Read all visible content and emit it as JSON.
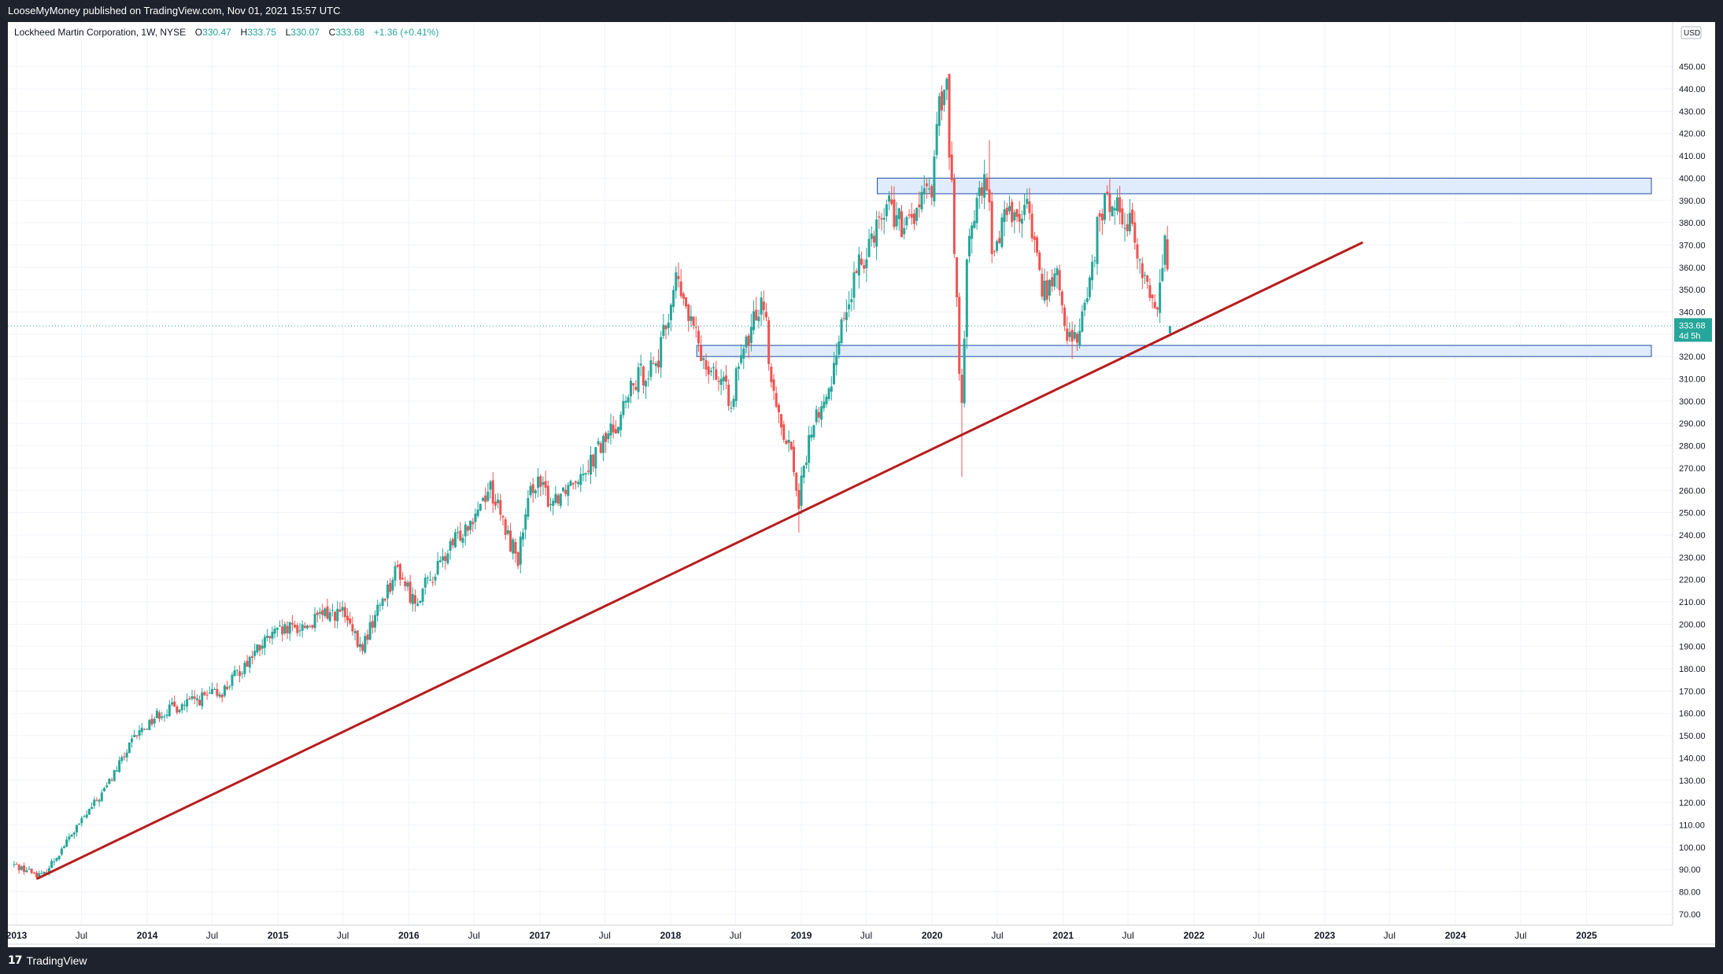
{
  "header": {
    "published_text": "LooseMyMoney published on TradingView.com, Nov 01, 2021 15:57 UTC"
  },
  "legend": {
    "symbol_text": "Lockheed Martin Corporation, 1W, NYSE",
    "open_label": "O",
    "open_value": "330.47",
    "high_label": "H",
    "high_value": "333.75",
    "low_label": "L",
    "low_value": "330.07",
    "close_label": "C",
    "close_value": "333.68",
    "change_value": "+1.36 (+0.41%)"
  },
  "footer": {
    "brand": "TradingView",
    "logo_icon": "tradingview-logo-icon"
  },
  "colors": {
    "up": "#26a69a",
    "down": "#ef5350",
    "trendline": "#b71c1c",
    "zone_fill": "#dbe9fb",
    "zone_border": "#1e4fa0",
    "grid": "#f0f3fa",
    "price_badge": "#26a69a"
  },
  "chart_data": {
    "type": "candlestick",
    "title": "Lockheed Martin Corporation, 1W, NYSE",
    "currency": "USD",
    "y_axis": {
      "scale": "linear",
      "range": [
        65,
        470
      ],
      "tick_labels": [
        "70.00",
        "80.00",
        "90.00",
        "100.00",
        "110.00",
        "120.00",
        "130.00",
        "140.00",
        "150.00",
        "160.00",
        "170.00",
        "180.00",
        "190.00",
        "200.00",
        "210.00",
        "220.00",
        "230.00",
        "240.00",
        "250.00",
        "260.00",
        "270.00",
        "280.00",
        "290.00",
        "300.00",
        "310.00",
        "320.00",
        "330.00",
        "340.00",
        "350.00",
        "360.00",
        "370.00",
        "380.00",
        "390.00",
        "400.00",
        "410.00",
        "420.00",
        "430.00",
        "440.00",
        "450.00"
      ],
      "tick_values": [
        70,
        80,
        90,
        100,
        110,
        120,
        130,
        140,
        150,
        160,
        170,
        180,
        190,
        200,
        210,
        220,
        230,
        240,
        250,
        260,
        270,
        280,
        290,
        300,
        310,
        320,
        330,
        340,
        350,
        360,
        370,
        380,
        390,
        400,
        410,
        420,
        430,
        440,
        450
      ]
    },
    "x_axis": {
      "range": [
        "2013-01-01",
        "2025-07-01"
      ],
      "tick_labels": [
        "2013",
        "Jul",
        "2014",
        "Jul",
        "2015",
        "Jul",
        "2016",
        "Jul",
        "2017",
        "Jul",
        "2018",
        "Jul",
        "2019",
        "Jul",
        "2020",
        "Jul",
        "2021",
        "Jul",
        "2022",
        "Jul",
        "2023",
        "Jul",
        "2024",
        "Jul",
        "2025"
      ],
      "tick_dates": [
        "2013-01-01",
        "2013-07-01",
        "2014-01-01",
        "2014-07-01",
        "2015-01-01",
        "2015-07-01",
        "2016-01-01",
        "2016-07-01",
        "2017-01-01",
        "2017-07-01",
        "2018-01-01",
        "2018-07-01",
        "2019-01-01",
        "2019-07-01",
        "2020-01-01",
        "2020-07-01",
        "2021-01-01",
        "2021-07-01",
        "2022-01-01",
        "2022-07-01",
        "2023-01-01",
        "2023-07-01",
        "2024-01-01",
        "2024-07-01",
        "2025-01-01"
      ]
    },
    "grid": true,
    "price_path_anchors": [
      {
        "date": "2012-12-25",
        "close": 92
      },
      {
        "date": "2013-03-15",
        "close": 87
      },
      {
        "date": "2013-06-01",
        "close": 105
      },
      {
        "date": "2013-09-01",
        "close": 125
      },
      {
        "date": "2013-12-01",
        "close": 150
      },
      {
        "date": "2014-02-01",
        "close": 160
      },
      {
        "date": "2014-05-01",
        "close": 165
      },
      {
        "date": "2014-08-01",
        "close": 170
      },
      {
        "date": "2014-10-15",
        "close": 185
      },
      {
        "date": "2014-12-15",
        "close": 195
      },
      {
        "date": "2015-02-15",
        "close": 198
      },
      {
        "date": "2015-04-01",
        "close": 200
      },
      {
        "date": "2015-05-15",
        "close": 205
      },
      {
        "date": "2015-07-01",
        "close": 205
      },
      {
        "date": "2015-08-20",
        "close": 188
      },
      {
        "date": "2015-10-15",
        "close": 210
      },
      {
        "date": "2015-12-01",
        "close": 225
      },
      {
        "date": "2016-01-15",
        "close": 210
      },
      {
        "date": "2016-03-01",
        "close": 220
      },
      {
        "date": "2016-05-01",
        "close": 235
      },
      {
        "date": "2016-07-01",
        "close": 250
      },
      {
        "date": "2016-08-15",
        "close": 262
      },
      {
        "date": "2016-10-01",
        "close": 240
      },
      {
        "date": "2016-11-01",
        "close": 230
      },
      {
        "date": "2016-12-15",
        "close": 265
      },
      {
        "date": "2017-02-01",
        "close": 255
      },
      {
        "date": "2017-04-01",
        "close": 265
      },
      {
        "date": "2017-06-01",
        "close": 275
      },
      {
        "date": "2017-08-01",
        "close": 290
      },
      {
        "date": "2017-10-01",
        "close": 310
      },
      {
        "date": "2017-12-01",
        "close": 320
      },
      {
        "date": "2018-01-15",
        "close": 355
      },
      {
        "date": "2018-02-15",
        "close": 340
      },
      {
        "date": "2018-04-01",
        "close": 320
      },
      {
        "date": "2018-05-01",
        "close": 315
      },
      {
        "date": "2018-06-15",
        "close": 300
      },
      {
        "date": "2018-08-01",
        "close": 325
      },
      {
        "date": "2018-09-15",
        "close": 350
      },
      {
        "date": "2018-10-15",
        "close": 300
      },
      {
        "date": "2018-12-01",
        "close": 280
      },
      {
        "date": "2018-12-24",
        "close": 255
      },
      {
        "date": "2019-02-01",
        "close": 290
      },
      {
        "date": "2019-03-15",
        "close": 300
      },
      {
        "date": "2019-04-15",
        "close": 330
      },
      {
        "date": "2019-06-01",
        "close": 355
      },
      {
        "date": "2019-07-15",
        "close": 375
      },
      {
        "date": "2019-09-01",
        "close": 390
      },
      {
        "date": "2019-10-15",
        "close": 375
      },
      {
        "date": "2019-11-15",
        "close": 385
      },
      {
        "date": "2019-12-31",
        "close": 395
      },
      {
        "date": "2020-01-15",
        "close": 430
      },
      {
        "date": "2020-02-10",
        "close": 440
      },
      {
        "date": "2020-03-01",
        "close": 380
      },
      {
        "date": "2020-03-23",
        "close": 290
      },
      {
        "date": "2020-04-10",
        "close": 375
      },
      {
        "date": "2020-05-01",
        "close": 385
      },
      {
        "date": "2020-06-01",
        "close": 400
      },
      {
        "date": "2020-06-20",
        "close": 360
      },
      {
        "date": "2020-07-15",
        "close": 385
      },
      {
        "date": "2020-08-15",
        "close": 385
      },
      {
        "date": "2020-10-01",
        "close": 385
      },
      {
        "date": "2020-11-01",
        "close": 350
      },
      {
        "date": "2020-12-15",
        "close": 355
      },
      {
        "date": "2021-01-25",
        "close": 322
      },
      {
        "date": "2021-03-01",
        "close": 340
      },
      {
        "date": "2021-04-15",
        "close": 385
      },
      {
        "date": "2021-05-15",
        "close": 390
      },
      {
        "date": "2021-06-20",
        "close": 385
      },
      {
        "date": "2021-07-15",
        "close": 375
      },
      {
        "date": "2021-08-15",
        "close": 355
      },
      {
        "date": "2021-09-15",
        "close": 340
      },
      {
        "date": "2021-10-15",
        "close": 375
      },
      {
        "date": "2021-10-25",
        "close": 330
      },
      {
        "date": "2021-11-01",
        "close": 333.68
      }
    ],
    "wick_extremes": [
      {
        "date": "2018-12-24",
        "low": 241
      },
      {
        "date": "2020-03-23",
        "low": 266
      },
      {
        "date": "2020-02-17",
        "high": 442
      },
      {
        "date": "2020-06-08",
        "high": 417
      },
      {
        "date": "2021-01-25",
        "low": 319
      }
    ],
    "last_bar": {
      "date": "2021-11-01",
      "open": 330.47,
      "high": 333.75,
      "low": 330.07,
      "close": 333.68,
      "change": "+1.36 (+0.41%)"
    },
    "price_label": {
      "value": "333.68",
      "countdown": "4d 5h"
    },
    "drawings": {
      "resistance_zone": {
        "start": "2019-08-01",
        "end": "2025-07-01",
        "low": 393,
        "high": 400
      },
      "support_zone": {
        "start": "2018-03-15",
        "end": "2025-07-01",
        "low": 320,
        "high": 325
      },
      "trendline": {
        "start": {
          "date": "2013-03-01",
          "price": 86
        },
        "end": {
          "date": "2023-04-15",
          "price": 371
        }
      }
    }
  }
}
